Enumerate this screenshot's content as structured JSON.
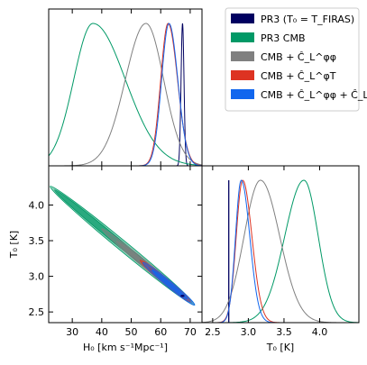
{
  "chart_data": {
    "type": "corner-plot",
    "parameters": [
      {
        "key": "H0",
        "label": "H₀ [km s⁻¹Mpc⁻¹]",
        "range": [
          22,
          74
        ],
        "ticks": [
          "30",
          "40",
          "50",
          "60",
          "70"
        ],
        "tick_values": [
          30,
          40,
          50,
          60,
          70
        ]
      },
      {
        "key": "T0",
        "label": "T₀ [K]",
        "range": [
          2.35,
          4.55
        ],
        "ticks_x": [
          "2.5",
          "3.0",
          "3.5",
          "4.0"
        ],
        "tick_values_x": [
          2.5,
          3.0,
          3.5,
          4.0
        ],
        "ticks_y": [
          "2.5",
          "3.0",
          "3.5",
          "4.0"
        ],
        "tick_values_y": [
          2.5,
          3.0,
          3.5,
          4.0
        ]
      }
    ],
    "series": [
      {
        "name": "PR3 (T₀ = T_FIRAS)",
        "color": "#000060",
        "H0": {
          "type": "spike",
          "center": 67.4,
          "sigma": 0.5
        },
        "T0": {
          "type": "spike",
          "value": 2.7255
        }
      },
      {
        "name": "PR3 CMB",
        "color": "#009966",
        "H0": {
          "type": "gauss",
          "mu": 37,
          "s_left": 6.5,
          "s_right": 11
        },
        "T0": {
          "type": "gauss",
          "mu": 3.78,
          "s_left": 0.27,
          "s_right": 0.2
        }
      },
      {
        "name": "CMB + Ĉ_L^φφ",
        "color": "#808080",
        "H0": {
          "type": "gauss",
          "mu": 55,
          "s_left": 7,
          "s_right": 6
        },
        "T0": {
          "type": "gauss",
          "mu": 3.17,
          "s_left": 0.23,
          "s_right": 0.27
        }
      },
      {
        "name": "CMB + Ĉ_L^φT",
        "color": "#dd3322",
        "H0": {
          "type": "gauss",
          "mu": 62.5,
          "s_left": 2.5,
          "s_right": 3.2
        },
        "T0": {
          "type": "gauss",
          "mu": 2.92,
          "s_left": 0.09,
          "s_right": 0.13
        }
      },
      {
        "name": "CMB + Ĉ_L^φφ + Ĉ_L^φT",
        "color": "#1166ee",
        "H0": {
          "type": "gauss",
          "mu": 62.8,
          "s_left": 2.5,
          "s_right": 3.0
        },
        "T0": {
          "type": "gauss",
          "mu": 2.9,
          "s_left": 0.08,
          "s_right": 0.12
        }
      }
    ],
    "contours": {
      "degeneracy": {
        "x_range": [
          22,
          72
        ],
        "y_at_xmin": 4.28,
        "y_at_xmax": 2.58
      }
    },
    "legend_placement": "top-right"
  }
}
